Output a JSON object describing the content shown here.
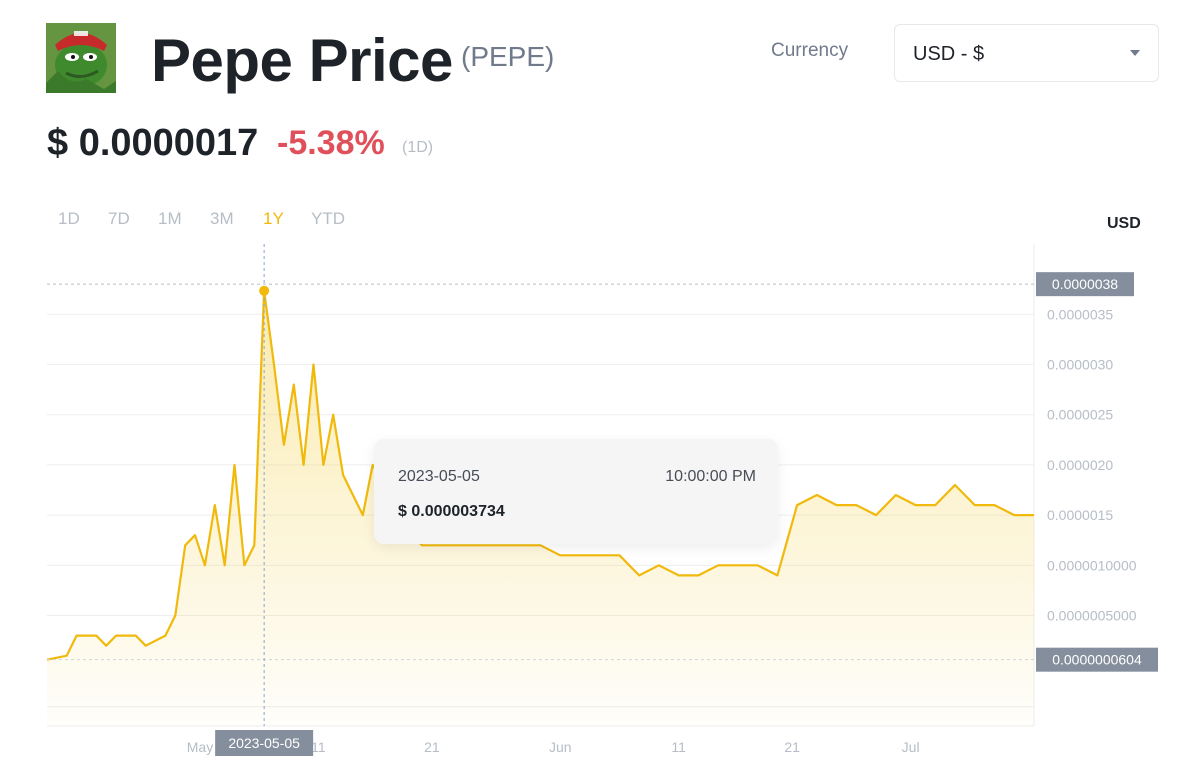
{
  "header": {
    "title": "Pepe Price",
    "symbol": "(PEPE)",
    "logo_icon": "pepe-frog-icon",
    "currency_label": "Currency",
    "currency_value": "USD - $"
  },
  "price": {
    "value": "$ 0.0000017",
    "change": "-5.38%",
    "period": "(1D)"
  },
  "ranges": [
    {
      "label": "1D",
      "active": false
    },
    {
      "label": "7D",
      "active": false
    },
    {
      "label": "1M",
      "active": false
    },
    {
      "label": "3M",
      "active": false
    },
    {
      "label": "1Y",
      "active": true
    },
    {
      "label": "YTD",
      "active": false
    }
  ],
  "colors": {
    "line": "#f0b90b",
    "negative": "#e0505b",
    "muted": "#b7bdc6",
    "label_bg": "#848e9c"
  },
  "tooltip": {
    "date": "2023-05-05",
    "time": "10:00:00 PM",
    "price": "$ 0.000003734"
  },
  "chart_data": {
    "type": "area",
    "unit_label": "USD",
    "y_ticks": [
      "0.0000035",
      "0.0000030",
      "0.0000025",
      "0.0000020",
      "0.0000015",
      "0.0000010000",
      "0.0000005000"
    ],
    "y_tick_values": [
      3.5e-06,
      3e-06,
      2.5e-06,
      2e-06,
      1.5e-06,
      1e-06,
      5e-07
    ],
    "x_ticks": [
      "May",
      "11",
      "21",
      "Jun",
      "11",
      "21",
      "Jul"
    ],
    "ylim": [
      -6e-07,
      4.2e-06
    ],
    "max_label": "0.0000038",
    "max_value": 3.8e-06,
    "min_label": "0.0000000604",
    "min_value": 6.04e-08,
    "crosshair_label": "2023-05-05",
    "crosshair_value": 3.734e-06,
    "series": [
      {
        "x": [
          0,
          0.02,
          0.03,
          0.05,
          0.06,
          0.07,
          0.09,
          0.1,
          0.12,
          0.13,
          0.14,
          0.15,
          0.16,
          0.17,
          0.18,
          0.19,
          0.2,
          0.21,
          0.22,
          0.23,
          0.24,
          0.25,
          0.26,
          0.27,
          0.28,
          0.29,
          0.3,
          0.32,
          0.33,
          0.35,
          0.36,
          0.38,
          0.4,
          0.42,
          0.45,
          0.48,
          0.5,
          0.52,
          0.54,
          0.56,
          0.58,
          0.6,
          0.62,
          0.64,
          0.66,
          0.68,
          0.7,
          0.72,
          0.74,
          0.76,
          0.78,
          0.8,
          0.82,
          0.84,
          0.86,
          0.88,
          0.9,
          0.92,
          0.94,
          0.96,
          0.98,
          1.0
        ],
        "values": [
          6e-08,
          1e-07,
          3e-07,
          3e-07,
          2e-07,
          3e-07,
          3e-07,
          2e-07,
          3e-07,
          5e-07,
          1.2e-06,
          1.3e-06,
          1e-06,
          1.6e-06,
          1e-06,
          2e-06,
          1e-06,
          1.2e-06,
          3.734e-06,
          3e-06,
          2.2e-06,
          2.8e-06,
          2e-06,
          3e-06,
          2e-06,
          2.5e-06,
          1.9e-06,
          1.5e-06,
          2e-06,
          1.7e-06,
          1.4e-06,
          1.2e-06,
          1.2e-06,
          1.2e-06,
          1.2e-06,
          1.2e-06,
          1.2e-06,
          1.1e-06,
          1.1e-06,
          1.1e-06,
          1.1e-06,
          9e-07,
          1e-06,
          9e-07,
          9e-07,
          1e-06,
          1e-06,
          1e-06,
          9e-07,
          1.6e-06,
          1.7e-06,
          1.6e-06,
          1.6e-06,
          1.5e-06,
          1.7e-06,
          1.6e-06,
          1.6e-06,
          1.8e-06,
          1.6e-06,
          1.6e-06,
          1.5e-06,
          1.5e-06
        ]
      }
    ]
  }
}
